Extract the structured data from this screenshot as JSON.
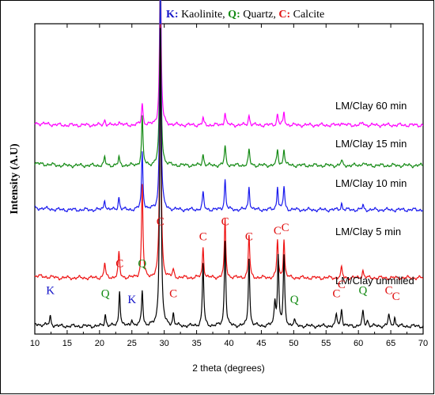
{
  "chart_data": {
    "type": "line",
    "legend_title": [
      {
        "letter": "K",
        "word": "Kaolinite",
        "color": "#1515c8",
        "sep": ", "
      },
      {
        "letter": "Q",
        "word": "Quartz",
        "color": "#138a13",
        "sep": ", "
      },
      {
        "letter": "C",
        "word": "Calcite",
        "color": "#e01010",
        "sep": ""
      }
    ],
    "xlabel": "2 theta (degrees)",
    "ylabel": "Intensity (A.U)",
    "xlim": [
      10,
      70
    ],
    "xticks": [
      10,
      15,
      20,
      25,
      30,
      35,
      40,
      45,
      50,
      55,
      60,
      65,
      70
    ],
    "y_ticks_shown": false,
    "grid": false,
    "series": [
      {
        "name": "LM/Clay 60 min",
        "color": "#ff00ff",
        "offset": 4,
        "scale": 0.55,
        "peaks": [
          [
            20.8,
            0.03
          ],
          [
            23.0,
            0.025
          ],
          [
            26.6,
            0.12
          ],
          [
            29.4,
            1.0
          ],
          [
            36.0,
            0.035
          ],
          [
            39.4,
            0.07
          ],
          [
            43.1,
            0.055
          ],
          [
            47.5,
            0.06
          ],
          [
            48.5,
            0.065
          ],
          [
            57.4,
            0.02
          ],
          [
            60.7,
            0.015
          ]
        ]
      },
      {
        "name": "LM/Clay 15 min",
        "color": "#148a14",
        "offset": 3,
        "scale": 0.68,
        "peaks": [
          [
            20.8,
            0.04
          ],
          [
            23.0,
            0.04
          ],
          [
            26.6,
            0.25
          ],
          [
            29.4,
            1.0
          ],
          [
            36.0,
            0.06
          ],
          [
            39.4,
            0.1
          ],
          [
            43.1,
            0.08
          ],
          [
            47.5,
            0.08
          ],
          [
            48.5,
            0.09
          ],
          [
            57.4,
            0.025
          ],
          [
            60.7,
            0.02
          ]
        ]
      },
      {
        "name": "LM/Clay 10 min",
        "color": "#1a1aee",
        "offset": 2,
        "scale": 0.72,
        "peaks": [
          [
            20.8,
            0.05
          ],
          [
            23.0,
            0.06
          ],
          [
            26.6,
            0.27
          ],
          [
            29.4,
            1.0
          ],
          [
            36.0,
            0.08
          ],
          [
            39.4,
            0.14
          ],
          [
            43.1,
            0.11
          ],
          [
            47.5,
            0.11
          ],
          [
            48.5,
            0.11
          ],
          [
            57.4,
            0.03
          ],
          [
            60.7,
            0.02
          ]
        ]
      },
      {
        "name": "LM/Clay 5 min",
        "color": "#ee1414",
        "offset": 1,
        "scale": 0.75,
        "peaks": [
          [
            20.8,
            0.06
          ],
          [
            23.0,
            0.1
          ],
          [
            26.6,
            0.37
          ],
          [
            29.4,
            1.0
          ],
          [
            31.4,
            0.03
          ],
          [
            36.0,
            0.12
          ],
          [
            39.4,
            0.23
          ],
          [
            43.1,
            0.17
          ],
          [
            47.5,
            0.15
          ],
          [
            48.5,
            0.15
          ],
          [
            57.4,
            0.04
          ],
          [
            60.7,
            0.03
          ]
        ]
      },
      {
        "name": "LM/Clay unmilled",
        "color": "#000000",
        "offset": 0,
        "scale": 0.82,
        "peaks": [
          [
            12.4,
            0.03
          ],
          [
            20.9,
            0.04
          ],
          [
            23.1,
            0.12
          ],
          [
            25.0,
            0.025
          ],
          [
            26.6,
            0.12
          ],
          [
            29.4,
            1.0
          ],
          [
            31.4,
            0.04
          ],
          [
            36.0,
            0.21
          ],
          [
            39.4,
            0.29
          ],
          [
            43.1,
            0.23
          ],
          [
            47.1,
            0.08
          ],
          [
            47.6,
            0.23
          ],
          [
            48.5,
            0.23
          ],
          [
            50.1,
            0.02
          ],
          [
            56.6,
            0.04
          ],
          [
            57.4,
            0.06
          ],
          [
            60.7,
            0.05
          ],
          [
            61.4,
            0.02
          ],
          [
            64.7,
            0.04
          ],
          [
            65.6,
            0.03
          ]
        ]
      }
    ],
    "peak_annotations": [
      {
        "text": "K",
        "color": "#1515c8",
        "x": 12.4,
        "level": 0.07
      },
      {
        "text": "Q",
        "color": "#138a13",
        "x": 20.9,
        "level": 0.06
      },
      {
        "text": "C",
        "color": "#e01010",
        "x": 23.1,
        "level": 0.16
      },
      {
        "text": "K",
        "color": "#1515c8",
        "x": 25.0,
        "level": 0.04
      },
      {
        "text": "Q",
        "color": "#138a13",
        "x": 26.6,
        "level": 0.16
      },
      {
        "text": "C",
        "color": "#e01010",
        "x": 29.4,
        "level": 0.3
      },
      {
        "text": "C",
        "color": "#e01010",
        "x": 31.4,
        "level": 0.06
      },
      {
        "text": "C",
        "color": "#e01010",
        "x": 36.0,
        "level": 0.25
      },
      {
        "text": "C",
        "color": "#e01010",
        "x": 39.4,
        "level": 0.3
      },
      {
        "text": "C",
        "color": "#e01010",
        "x": 43.1,
        "level": 0.25
      },
      {
        "text": "C",
        "color": "#e01010",
        "x": 47.5,
        "level": 0.27
      },
      {
        "text": "C",
        "color": "#e01010",
        "x": 48.7,
        "level": 0.28
      },
      {
        "text": "Q",
        "color": "#138a13",
        "x": 50.1,
        "level": 0.04
      },
      {
        "text": "C",
        "color": "#e01010",
        "x": 56.6,
        "level": 0.06
      },
      {
        "text": "C",
        "color": "#e01010",
        "x": 57.4,
        "level": 0.09
      },
      {
        "text": "Q",
        "color": "#138a13",
        "x": 60.7,
        "level": 0.07
      },
      {
        "text": "C",
        "color": "#e01010",
        "x": 64.7,
        "level": 0.07
      },
      {
        "text": "C",
        "color": "#e01010",
        "x": 65.8,
        "level": 0.05
      }
    ]
  }
}
